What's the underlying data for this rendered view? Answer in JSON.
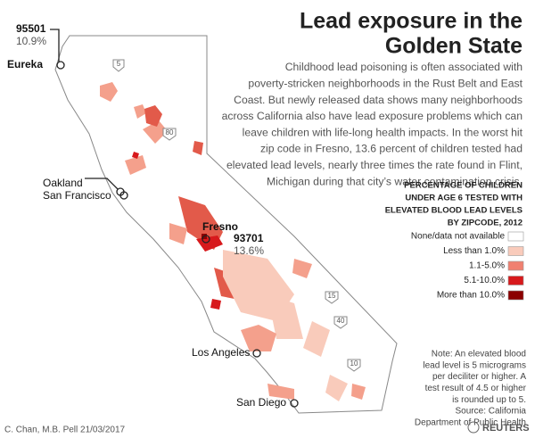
{
  "header": {
    "title": [
      "Lead exposure in the",
      "Golden State"
    ],
    "body": [
      "Childhood lead poisoning is often associated with",
      "poverty-stricken neighborhoods in the Rust Belt and East",
      "Coast. But newly released data shows many neighborhoods",
      "across California also have lead exposure problems which can",
      "leave children with life-long health impacts. In the worst hit",
      "zip code in Fresno, 13.6 percent of children tested had",
      "elevated lead levels, nearly three times the rate found in Flint,",
      "Michigan during that city’s water contamination crisis."
    ]
  },
  "legend": {
    "title": [
      "PERCENTAGE OF CHILDREN",
      "UNDER AGE 6 TESTED WITH",
      "ELEVATED BLOOD LEAD LEVELS",
      "BY ZIPCODE, 2012"
    ],
    "items": [
      {
        "label": "None/data not available",
        "color": "#ffffff"
      },
      {
        "label": "Less than 1.0%",
        "color": "#f9cbbb"
      },
      {
        "label": "1.1-5.0%",
        "color": "#f08070"
      },
      {
        "label": "5.1-10.0%",
        "color": "#d7191c"
      },
      {
        "label": "More than 10.0%",
        "color": "#8b0000"
      }
    ]
  },
  "map": {
    "callouts": [
      {
        "zip": "95501",
        "rate": "10.9%"
      },
      {
        "zip": "93701",
        "rate": "13.6%"
      }
    ],
    "cities": [
      "Eureka",
      "Oakland",
      "San Francisco",
      "Fresno",
      "Los Angeles",
      "San Diego"
    ],
    "highways": [
      "5",
      "80",
      "15",
      "40",
      "10"
    ]
  },
  "note": [
    "Note: An elevated blood",
    "lead level is 5 micrograms",
    "per deciliter or higher. A",
    "test result of 4.5 or higher",
    "is rounded up to 5.",
    "Source: California",
    "Department of Public Health"
  ],
  "footer": {
    "credit": "C. Chan, M.B. Pell 21/03/2017",
    "brand": "REUTERS"
  }
}
